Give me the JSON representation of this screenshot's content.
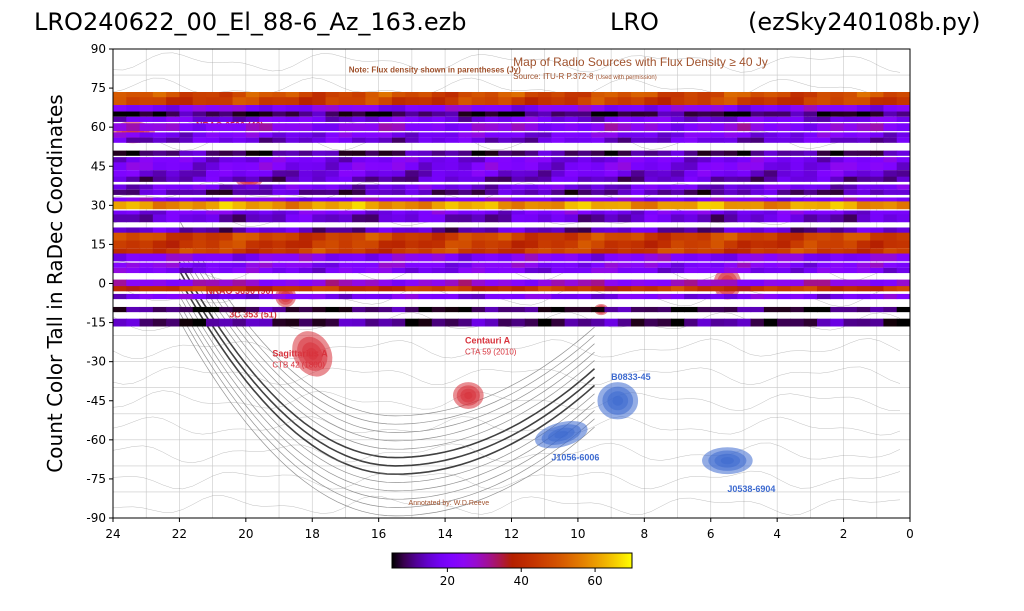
{
  "title": {
    "left": "LRO240622_00_El_88-6_Az_163.ezb",
    "center": "LRO",
    "right": "(ezSky240108b.py)"
  },
  "chart_data": {
    "type": "heatmap",
    "ylabel": "Count Color Tall in RaDec Coordinates",
    "xlabel": "",
    "xlim": [
      24,
      0
    ],
    "ylim": [
      -90,
      90
    ],
    "x_ticks": [
      24,
      22,
      20,
      18,
      16,
      14,
      12,
      10,
      8,
      6,
      4,
      2,
      0
    ],
    "y_ticks": [
      90,
      75,
      60,
      45,
      30,
      15,
      0,
      -15,
      -30,
      -45,
      -60,
      -75,
      -90
    ],
    "colorbar": {
      "colormap": "gnuplot",
      "range": [
        5,
        70
      ],
      "ticks": [
        20,
        40,
        60
      ],
      "placement": "bottom"
    },
    "stripes": [
      {
        "dec": 72,
        "height": 3,
        "value": 48
      },
      {
        "dec": 70,
        "height": 3,
        "value": 45
      },
      {
        "dec": 67,
        "height": 3,
        "value": 22
      },
      {
        "dec": 65,
        "height": 2,
        "value": 8
      },
      {
        "dec": 63,
        "height": 2,
        "value": 18
      },
      {
        "dec": 60,
        "height": 3,
        "value": 24
      },
      {
        "dec": 57,
        "height": 2,
        "value": 20
      },
      {
        "dec": 55,
        "height": 2,
        "value": 16
      },
      {
        "dec": 50,
        "height": 2,
        "value": 10
      },
      {
        "dec": 47,
        "height": 3,
        "value": 19
      },
      {
        "dec": 45,
        "height": 3,
        "value": 20
      },
      {
        "dec": 42,
        "height": 3,
        "value": 17
      },
      {
        "dec": 40,
        "height": 2,
        "value": 14
      },
      {
        "dec": 37,
        "height": 2,
        "value": 18
      },
      {
        "dec": 35,
        "height": 2,
        "value": 12
      },
      {
        "dec": 32,
        "height": 2,
        "value": 22
      },
      {
        "dec": 30,
        "height": 3,
        "value": 60
      },
      {
        "dec": 27,
        "height": 2,
        "value": 20
      },
      {
        "dec": 25,
        "height": 3,
        "value": 15
      },
      {
        "dec": 20,
        "height": 3,
        "value": 14
      },
      {
        "dec": 18,
        "height": 3,
        "value": 46
      },
      {
        "dec": 15,
        "height": 3,
        "value": 44
      },
      {
        "dec": 12,
        "height": 3,
        "value": 45
      },
      {
        "dec": 10,
        "height": 3,
        "value": 22
      },
      {
        "dec": 7,
        "height": 2,
        "value": 22
      },
      {
        "dec": 5,
        "height": 2,
        "value": 20
      },
      {
        "dec": 0,
        "height": 3,
        "value": 26
      },
      {
        "dec": -2,
        "height": 2,
        "value": 43
      },
      {
        "dec": -5,
        "height": 2,
        "value": 20
      },
      {
        "dec": -10,
        "height": 2,
        "value": 8
      },
      {
        "dec": -15,
        "height": 3,
        "value": 10
      }
    ],
    "background_map": {
      "note": "Note: Flux density shown in parentheses (Jy)",
      "title": "Map of Radio Sources with Flux Density ≥ 40 Jy",
      "source": "Source: ITU-R P.372-8",
      "source_note": "(Used with permission)",
      "annotated_by": "Annotated by: W.D.Reeve",
      "labels": [
        {
          "text": "Sagittarius A",
          "sub": "CTB 42 (1800)",
          "ra": 19.2,
          "dec": -28,
          "color": "#d8323c"
        },
        {
          "text": "Centauri A",
          "sub": "CTA 59 (2010)",
          "ra": 13.4,
          "dec": -23,
          "color": "#d8323c"
        },
        {
          "text": "B0833-45",
          "sub": "",
          "ra": 9.0,
          "dec": -37,
          "color": "#3e6bd0"
        },
        {
          "text": "J1056-6006",
          "sub": "",
          "ra": 10.8,
          "dec": -68,
          "color": "#3e6bd0"
        },
        {
          "text": "J0538-6904",
          "sub": "",
          "ra": 5.5,
          "dec": -80,
          "color": "#3e6bd0"
        },
        {
          "text": "NRAO 5690 (90)",
          "sub": "",
          "ra": 21.2,
          "dec": -4,
          "color": "#d8323c"
        },
        {
          "text": "3C 353 (51)",
          "sub": "",
          "ra": 20.5,
          "dec": -13,
          "color": "#d8323c"
        },
        {
          "text": "NRAO 6500 (46)",
          "sub": "",
          "ra": 21.5,
          "dec": 59.5,
          "color": "#d8323c"
        }
      ],
      "blobs": [
        {
          "ra": 18.0,
          "dec": -27,
          "rx": 0.55,
          "ry": 9,
          "color": "#d8323c",
          "rot": -30
        },
        {
          "ra": 13.3,
          "dec": -43,
          "rx": 0.45,
          "ry": 5,
          "color": "#d8323c",
          "rot": 0
        },
        {
          "ra": 8.8,
          "dec": -45,
          "rx": 0.6,
          "ry": 7,
          "color": "#3e6bd0",
          "rot": 0
        },
        {
          "ra": 10.5,
          "dec": -58,
          "rx": 0.8,
          "ry": 4.5,
          "color": "#3e6bd0",
          "rot": -15
        },
        {
          "ra": 5.5,
          "dec": -68,
          "rx": 0.75,
          "ry": 5,
          "color": "#3e6bd0",
          "rot": 0
        },
        {
          "ra": 5.5,
          "dec": 0,
          "rx": 0.4,
          "ry": 6,
          "color": "#d8323c",
          "rot": 0
        },
        {
          "ra": 23.4,
          "dec": 58,
          "rx": 0.65,
          "ry": 4,
          "color": "#d8323c",
          "rot": 0
        },
        {
          "ra": 19.9,
          "dec": 40,
          "rx": 0.4,
          "ry": 3,
          "color": "#d8323c",
          "rot": 0
        },
        {
          "ra": 18.8,
          "dec": -5,
          "rx": 0.3,
          "ry": 4,
          "color": "#d8323c",
          "rot": 0
        },
        {
          "ra": 9.3,
          "dec": -10,
          "rx": 0.2,
          "ry": 2,
          "color": "#d8323c",
          "rot": 0
        }
      ]
    }
  }
}
